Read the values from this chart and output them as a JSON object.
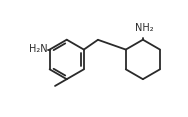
{
  "bg_color": "#ffffff",
  "line_color": "#2a2a2a",
  "text_color": "#2a2a2a",
  "line_width": 1.3,
  "font_size": 7.0,
  "figsize": [
    1.88,
    1.17
  ],
  "dpi": 100,
  "xlim": [
    0,
    10
  ],
  "ylim": [
    0,
    6.2
  ]
}
